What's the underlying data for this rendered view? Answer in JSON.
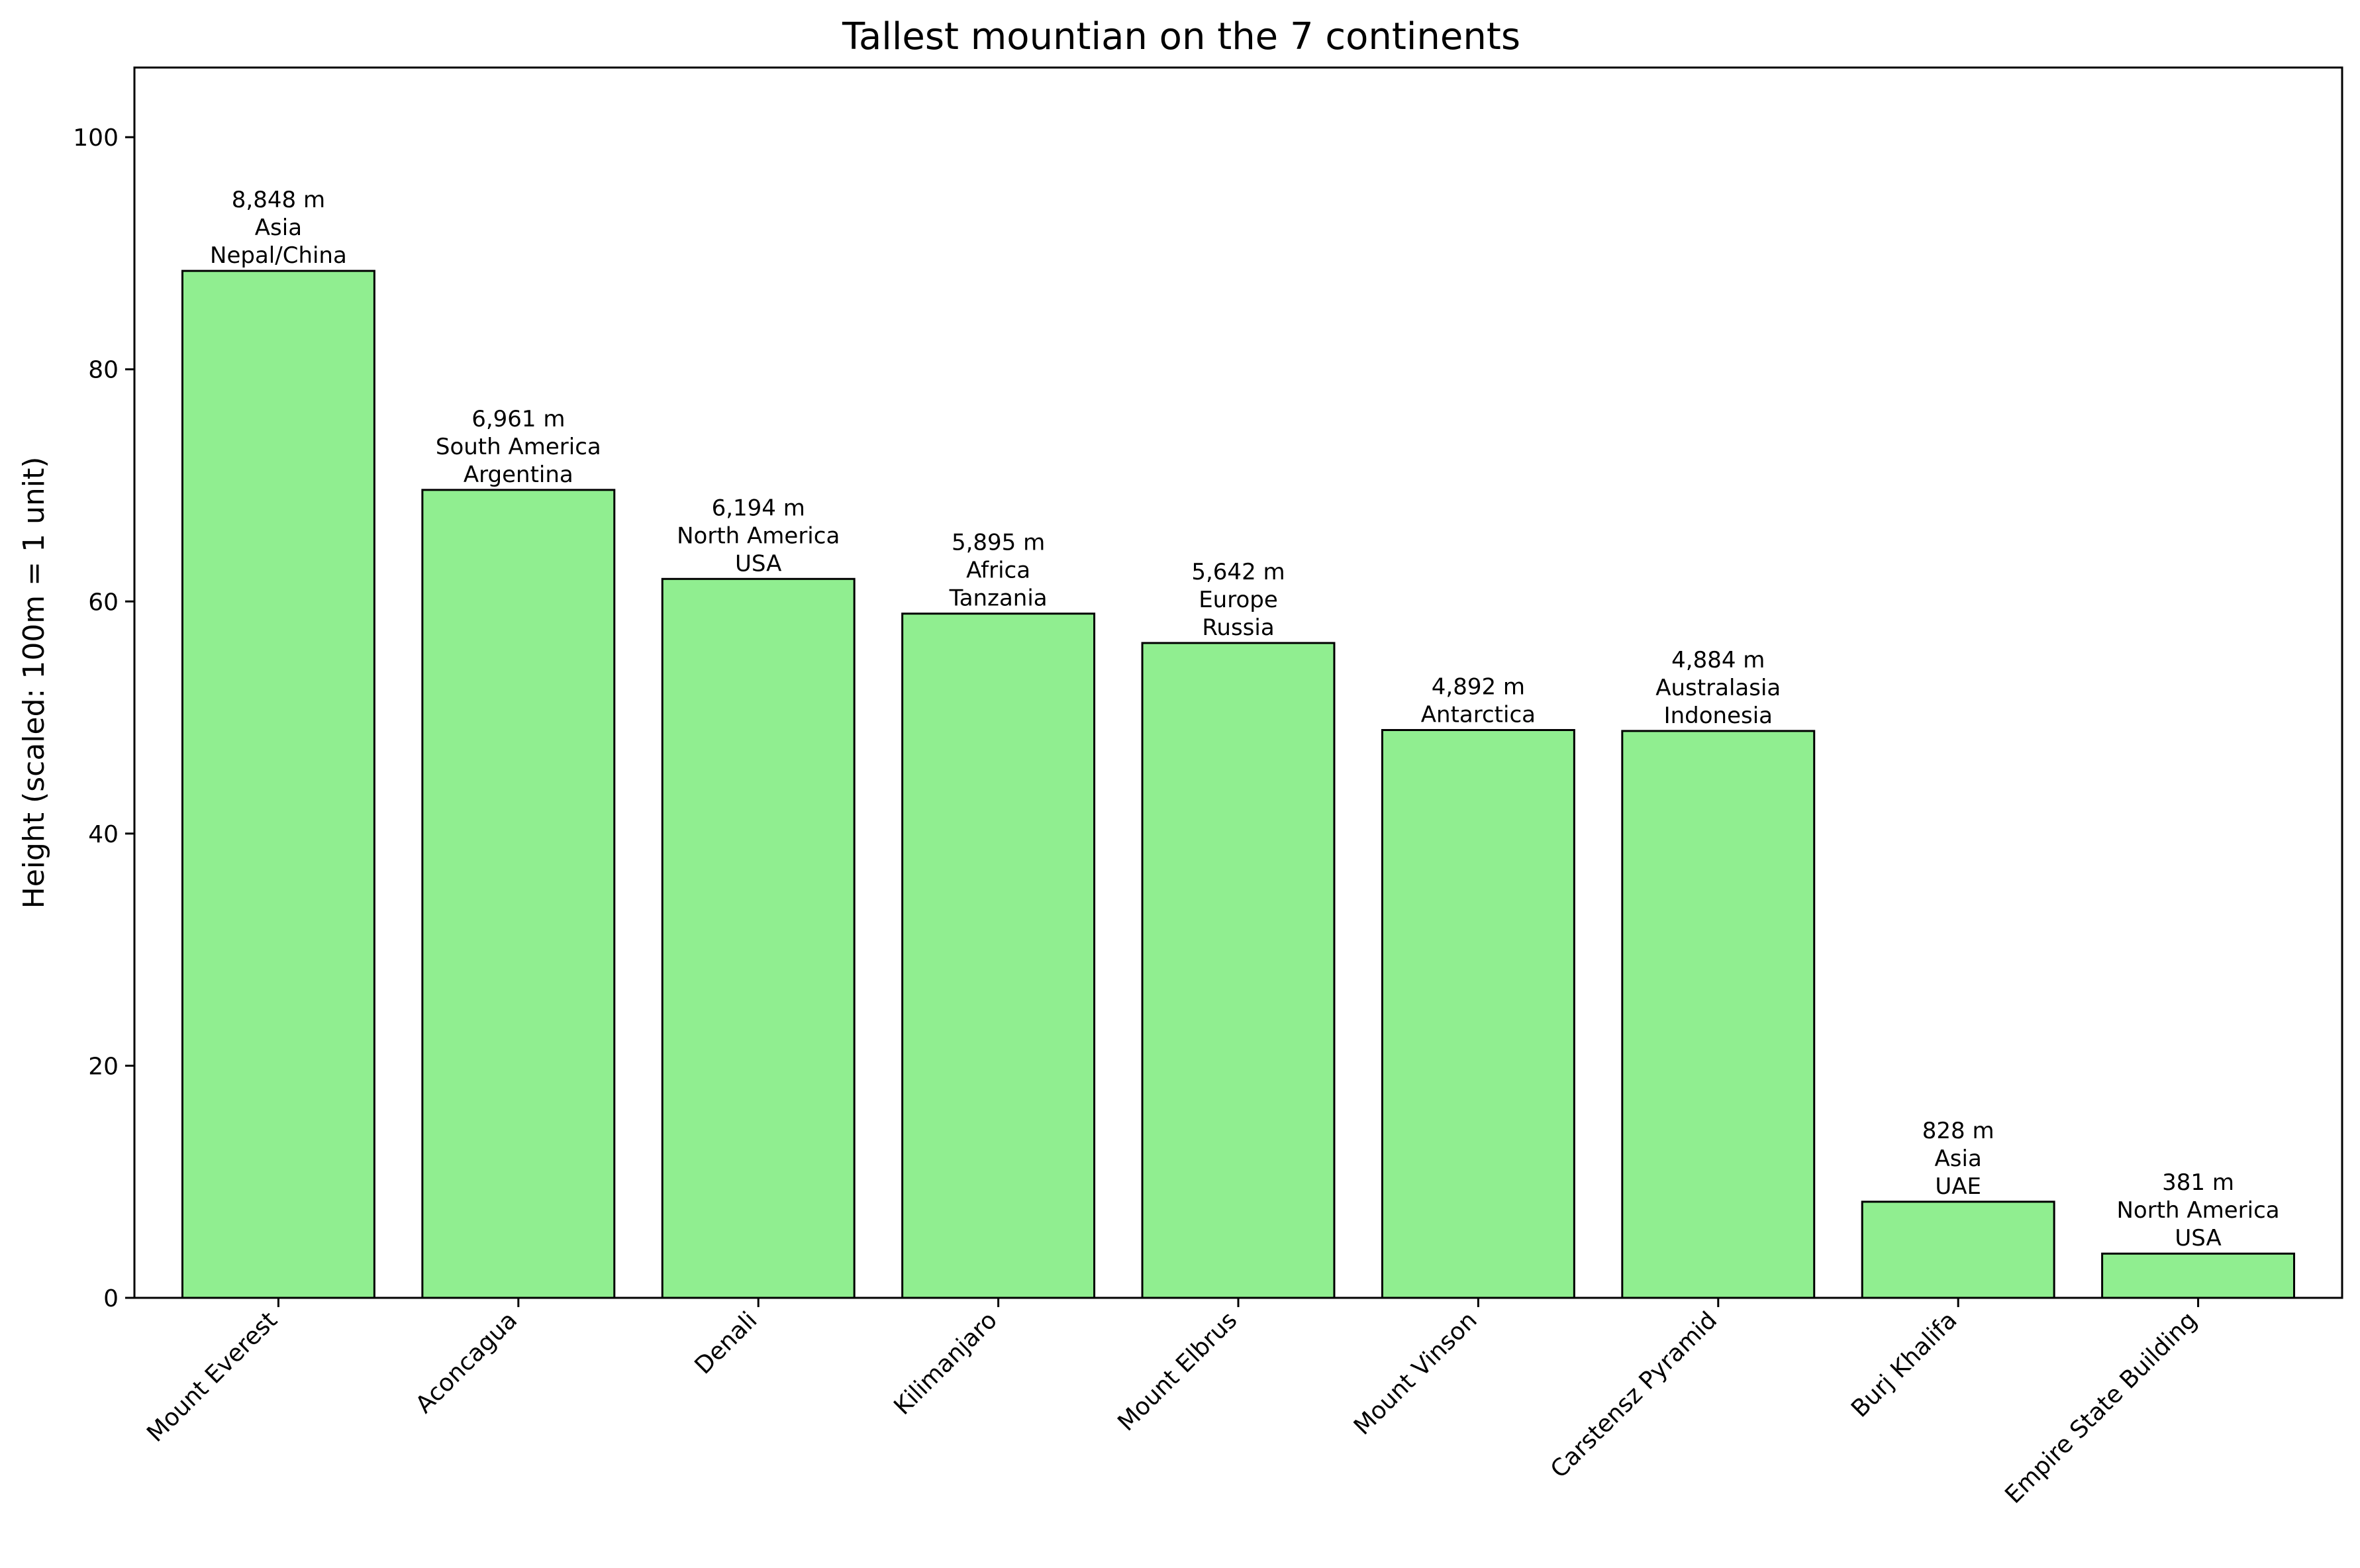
{
  "chart_data": {
    "type": "bar",
    "title": "Tallest mountian on the 7 continents",
    "xlabel": "",
    "ylabel": "Height (scaled: 100m = 1 unit)",
    "ylim": [
      0,
      106
    ],
    "yticks": [
      0,
      20,
      40,
      60,
      80,
      100
    ],
    "grid": false,
    "bar_color": "#90ee90",
    "edge_color": "#000000",
    "categories": [
      "Mount Everest",
      "Aconcagua",
      "Denali",
      "Kilimanjaro",
      "Mount Elbrus",
      "Mount Vinson",
      "Carstensz Pyramid",
      "Burj Khalifa",
      "Empire State Building"
    ],
    "values": [
      88.48,
      69.61,
      61.94,
      58.95,
      56.42,
      48.92,
      48.84,
      8.28,
      3.81
    ],
    "data_labels": [
      [
        "8,848 m",
        "Asia",
        "Nepal/China"
      ],
      [
        "6,961 m",
        "South America",
        "Argentina"
      ],
      [
        "6,194 m",
        "North America",
        "USA"
      ],
      [
        "5,895 m",
        "Africa",
        "Tanzania"
      ],
      [
        "5,642 m",
        "Europe",
        "Russia"
      ],
      [
        "4,892 m",
        "Antarctica"
      ],
      [
        "4,884 m",
        "Australasia",
        "Indonesia"
      ],
      [
        "828 m",
        "Asia",
        "UAE"
      ],
      [
        "381 m",
        "North America",
        "USA"
      ]
    ]
  }
}
